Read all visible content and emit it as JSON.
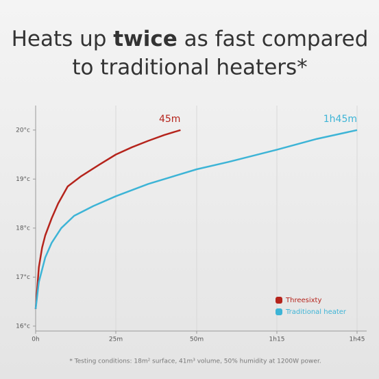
{
  "chart_data": {
    "type": "line",
    "title": [
      "Heats up",
      "twice",
      "as fast compared",
      "to traditional heaters*"
    ],
    "footnote": "* Testing conditions: 18m² surface, 41m³ volume, 50% humidity at 1200W power.",
    "xticks": [
      {
        "value": 0,
        "label": "0h"
      },
      {
        "value": 25,
        "label": "25m"
      },
      {
        "value": 50,
        "label": "50m"
      },
      {
        "value": 75,
        "label": "1h15"
      },
      {
        "value": 105,
        "label": "1h45"
      }
    ],
    "ylim": [
      15.9,
      20.5
    ],
    "yticks": [
      {
        "value": 16,
        "label": "16°c"
      },
      {
        "value": 17,
        "label": "17°c"
      },
      {
        "value": 18,
        "label": "18°c"
      },
      {
        "value": 19,
        "label": "19°c"
      },
      {
        "value": 20,
        "label": "20°c"
      }
    ],
    "grid": "x",
    "legend": "bottom-right",
    "series": [
      {
        "name": "Threesixty",
        "color": "#b5241c",
        "end_label": "45m",
        "x": [
          0,
          1,
          2,
          3,
          5,
          7,
          10,
          14,
          20,
          25,
          30,
          35,
          40,
          45
        ],
        "values": [
          16.35,
          17.2,
          17.6,
          17.85,
          18.2,
          18.5,
          18.85,
          19.05,
          19.3,
          19.5,
          19.65,
          19.78,
          19.9,
          20.0
        ]
      },
      {
        "name": "Traditional heater",
        "color": "#3db4d6",
        "end_label": "1h45m",
        "x": [
          0,
          1,
          3,
          5,
          8,
          12,
          18,
          25,
          35,
          50,
          60,
          75,
          90,
          105
        ],
        "values": [
          16.35,
          16.9,
          17.4,
          17.7,
          18.0,
          18.25,
          18.45,
          18.65,
          18.9,
          19.2,
          19.35,
          19.6,
          19.82,
          20.0
        ]
      }
    ]
  }
}
